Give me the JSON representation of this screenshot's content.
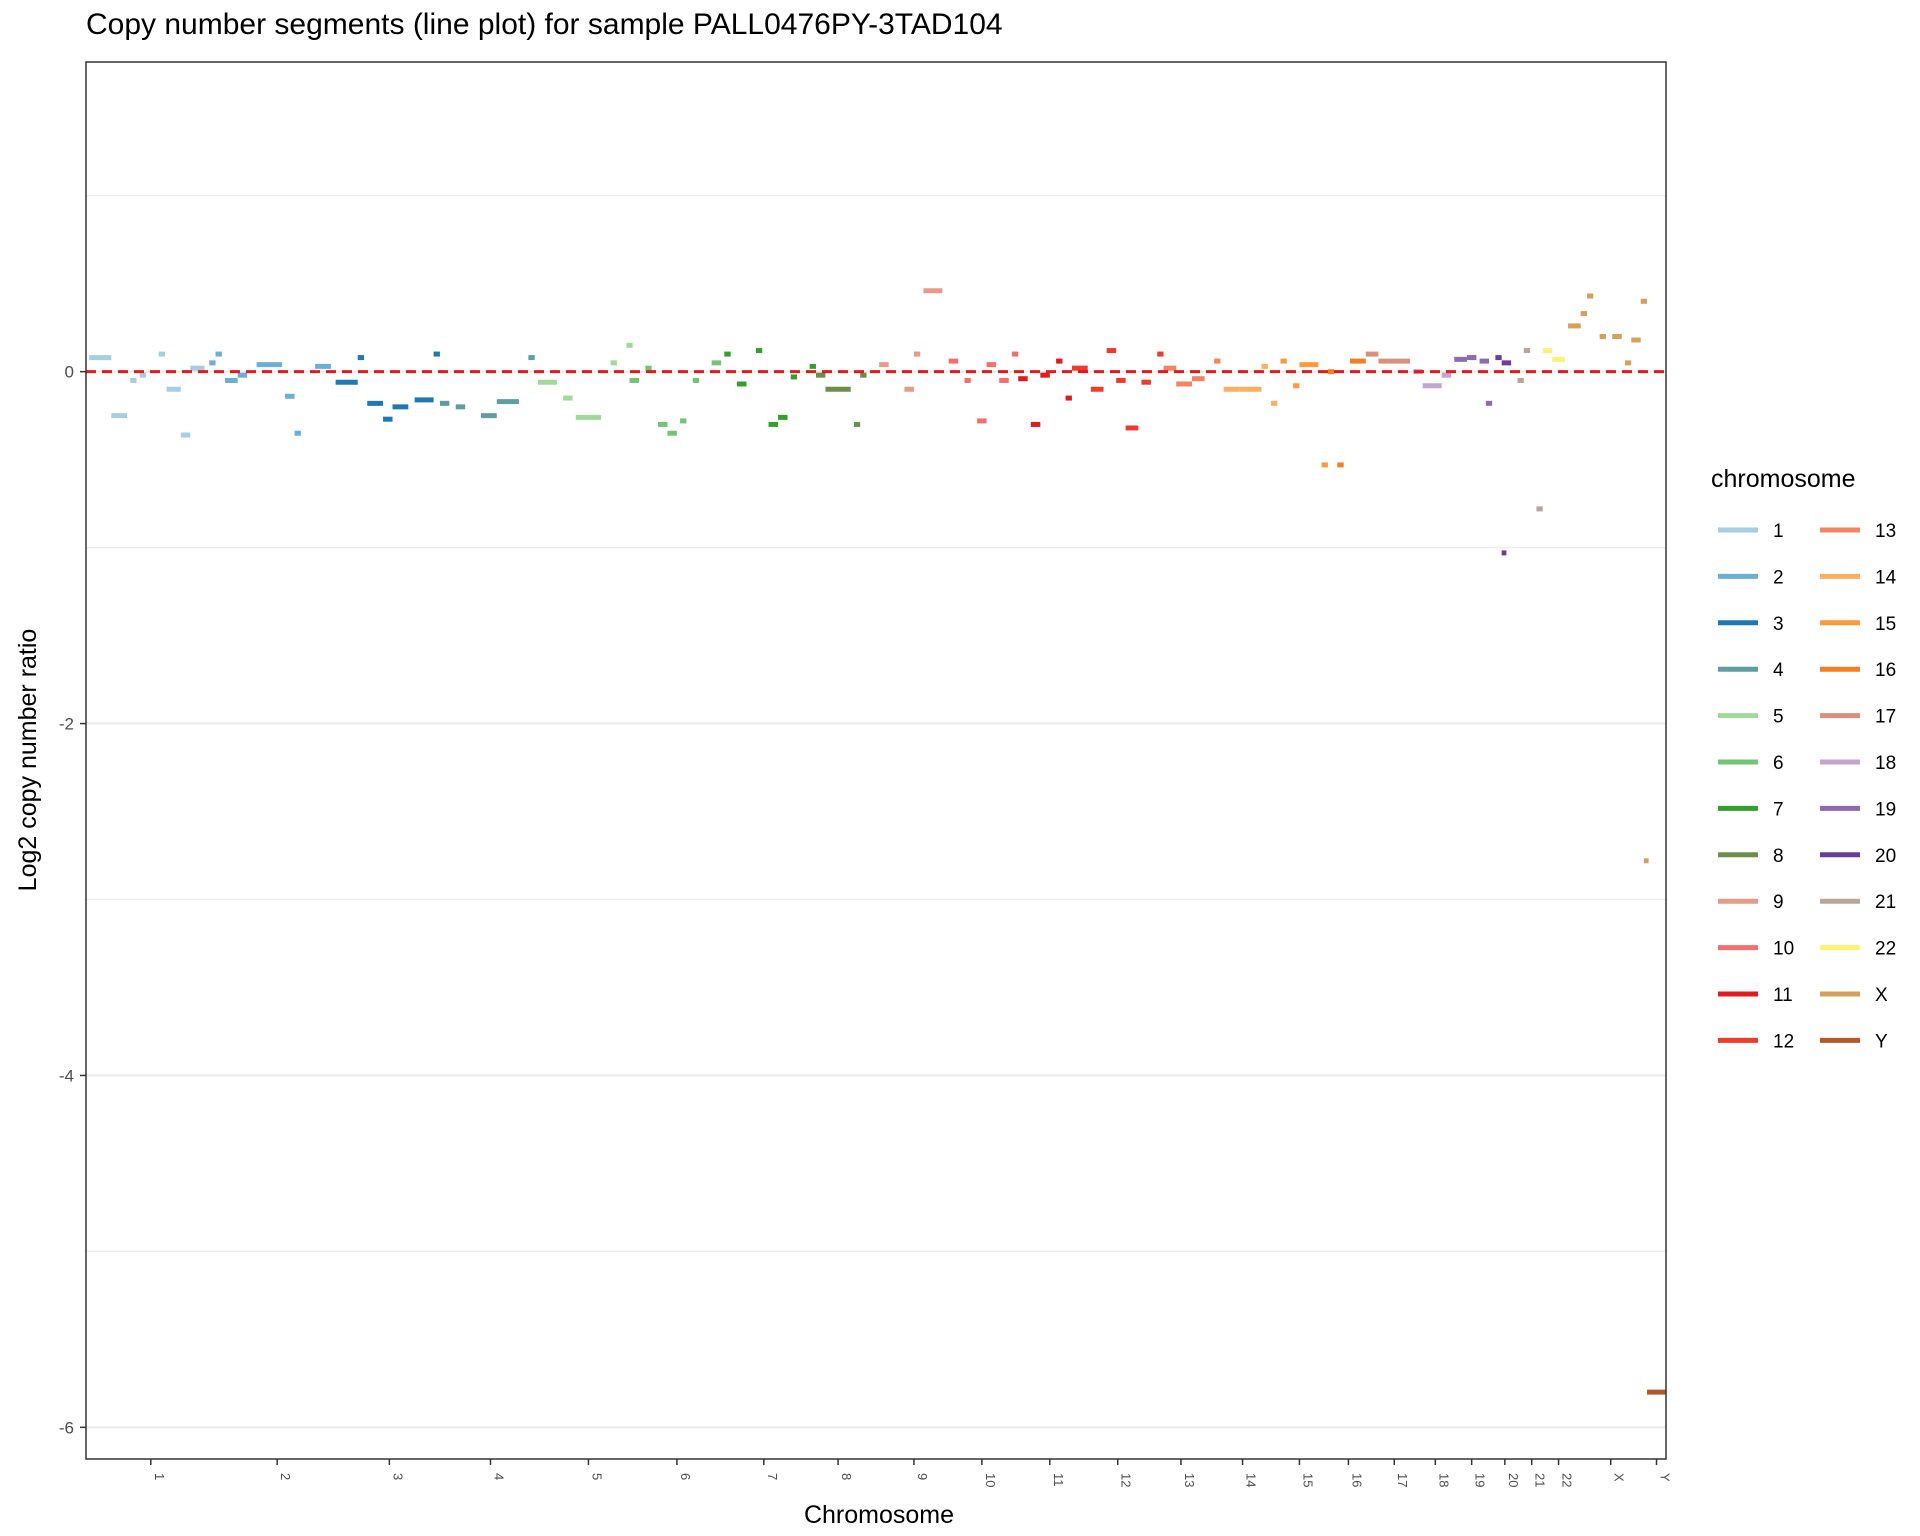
{
  "chart_data": {
    "type": "line",
    "title": "Copy number segments (line plot) for sample PALL0476PY-3TAD104",
    "xlabel": "Chromosome",
    "ylabel": "Log2 copy number ratio",
    "ylim": [
      -6.18,
      1.76
    ],
    "yticks": [
      0,
      -2,
      -4,
      -6
    ],
    "xlim": [
      0,
      100
    ],
    "reference_line": 0,
    "grid": "horizontal",
    "legend_title": "chromosome",
    "legend_placement": "right",
    "chromosomes": [
      {
        "name": "1",
        "center": 4.1,
        "color": "#a6cee3"
      },
      {
        "name": "2",
        "center": 12.1,
        "color": "#6baed6"
      },
      {
        "name": "3",
        "center": 19.2,
        "color": "#1f78b4"
      },
      {
        "name": "4",
        "center": 25.6,
        "color": "#5f9ea0"
      },
      {
        "name": "5",
        "center": 31.8,
        "color": "#a1d99b"
      },
      {
        "name": "6",
        "center": 37.4,
        "color": "#74c476"
      },
      {
        "name": "7",
        "center": 42.9,
        "color": "#33a02c"
      },
      {
        "name": "8",
        "center": 47.6,
        "color": "#6b8e4e"
      },
      {
        "name": "9",
        "center": 52.4,
        "color": "#e59a8a"
      },
      {
        "name": "10",
        "center": 56.7,
        "color": "#f46e6e"
      },
      {
        "name": "11",
        "center": 61.0,
        "color": "#e31a1c"
      },
      {
        "name": "12",
        "center": 65.3,
        "color": "#ef3b2c"
      },
      {
        "name": "13",
        "center": 69.3,
        "color": "#f4845f"
      },
      {
        "name": "14",
        "center": 73.2,
        "color": "#fdae61"
      },
      {
        "name": "15",
        "center": 76.8,
        "color": "#fd9b3c"
      },
      {
        "name": "16",
        "center": 79.9,
        "color": "#f57f20"
      },
      {
        "name": "17",
        "center": 82.8,
        "color": "#d8917c"
      },
      {
        "name": "18",
        "center": 85.4,
        "color": "#c2a5cf"
      },
      {
        "name": "19",
        "center": 87.7,
        "color": "#8c6bb1"
      },
      {
        "name": "20",
        "center": 89.8,
        "color": "#6a3d9a"
      },
      {
        "name": "21",
        "center": 91.5,
        "color": "#b8a59a"
      },
      {
        "name": "22",
        "center": 93.2,
        "color": "#fff176"
      },
      {
        "name": "X",
        "center": 96.5,
        "color": "#d4a05a"
      },
      {
        "name": "Y",
        "center": 99.4,
        "color": "#b15928"
      }
    ],
    "segments": [
      {
        "chr": "1",
        "x0": 0.2,
        "x1": 1.6,
        "y": 0.08
      },
      {
        "chr": "1",
        "x0": 1.6,
        "x1": 2.6,
        "y": -0.25
      },
      {
        "chr": "1",
        "x0": 2.8,
        "x1": 3.2,
        "y": -0.05
      },
      {
        "chr": "1",
        "x0": 3.4,
        "x1": 3.8,
        "y": -0.02
      },
      {
        "chr": "1",
        "x0": 4.6,
        "x1": 5.0,
        "y": 0.1
      },
      {
        "chr": "1",
        "x0": 5.1,
        "x1": 6.0,
        "y": -0.1
      },
      {
        "chr": "1",
        "x0": 6.0,
        "x1": 6.6,
        "y": -0.36
      },
      {
        "chr": "1",
        "x0": 6.6,
        "x1": 7.5,
        "y": 0.02
      },
      {
        "chr": "2",
        "x0": 7.8,
        "x1": 8.2,
        "y": 0.05
      },
      {
        "chr": "2",
        "x0": 8.2,
        "x1": 8.6,
        "y": 0.1
      },
      {
        "chr": "2",
        "x0": 8.8,
        "x1": 9.6,
        "y": -0.05
      },
      {
        "chr": "2",
        "x0": 9.6,
        "x1": 10.2,
        "y": -0.02
      },
      {
        "chr": "2",
        "x0": 10.8,
        "x1": 12.4,
        "y": 0.04
      },
      {
        "chr": "2",
        "x0": 12.6,
        "x1": 13.2,
        "y": -0.14
      },
      {
        "chr": "2",
        "x0": 13.2,
        "x1": 13.6,
        "y": -0.35
      },
      {
        "chr": "2",
        "x0": 14.5,
        "x1": 15.5,
        "y": 0.03
      },
      {
        "chr": "3",
        "x0": 15.8,
        "x1": 17.2,
        "y": -0.06
      },
      {
        "chr": "3",
        "x0": 17.2,
        "x1": 17.6,
        "y": 0.08
      },
      {
        "chr": "3",
        "x0": 17.8,
        "x1": 18.8,
        "y": -0.18
      },
      {
        "chr": "3",
        "x0": 18.8,
        "x1": 19.4,
        "y": -0.27
      },
      {
        "chr": "3",
        "x0": 19.4,
        "x1": 20.4,
        "y": -0.2
      },
      {
        "chr": "3",
        "x0": 20.8,
        "x1": 22.0,
        "y": -0.16
      },
      {
        "chr": "3",
        "x0": 22.0,
        "x1": 22.4,
        "y": 0.1
      },
      {
        "chr": "4",
        "x0": 22.4,
        "x1": 23.0,
        "y": -0.18
      },
      {
        "chr": "4",
        "x0": 23.4,
        "x1": 24.0,
        "y": -0.2
      },
      {
        "chr": "4",
        "x0": 25.0,
        "x1": 26.0,
        "y": -0.25
      },
      {
        "chr": "4",
        "x0": 26.0,
        "x1": 27.4,
        "y": -0.17
      },
      {
        "chr": "4",
        "x0": 28.0,
        "x1": 28.4,
        "y": 0.08
      },
      {
        "chr": "5",
        "x0": 28.6,
        "x1": 29.8,
        "y": -0.06
      },
      {
        "chr": "5",
        "x0": 30.2,
        "x1": 30.8,
        "y": -0.15
      },
      {
        "chr": "5",
        "x0": 31.0,
        "x1": 32.6,
        "y": -0.26
      },
      {
        "chr": "5",
        "x0": 33.2,
        "x1": 33.6,
        "y": 0.05
      },
      {
        "chr": "5",
        "x0": 34.2,
        "x1": 34.6,
        "y": 0.15
      },
      {
        "chr": "6",
        "x0": 34.4,
        "x1": 35.0,
        "y": -0.05
      },
      {
        "chr": "6",
        "x0": 35.4,
        "x1": 35.8,
        "y": 0.02
      },
      {
        "chr": "6",
        "x0": 36.2,
        "x1": 36.8,
        "y": -0.3
      },
      {
        "chr": "6",
        "x0": 36.8,
        "x1": 37.4,
        "y": -0.35
      },
      {
        "chr": "6",
        "x0": 37.6,
        "x1": 38.0,
        "y": -0.28
      },
      {
        "chr": "6",
        "x0": 38.4,
        "x1": 38.8,
        "y": -0.05
      },
      {
        "chr": "6",
        "x0": 39.6,
        "x1": 40.2,
        "y": 0.05
      },
      {
        "chr": "7",
        "x0": 40.4,
        "x1": 40.8,
        "y": 0.1
      },
      {
        "chr": "7",
        "x0": 41.2,
        "x1": 41.8,
        "y": -0.07
      },
      {
        "chr": "7",
        "x0": 42.4,
        "x1": 42.8,
        "y": 0.12
      },
      {
        "chr": "7",
        "x0": 43.2,
        "x1": 43.8,
        "y": -0.3
      },
      {
        "chr": "7",
        "x0": 43.8,
        "x1": 44.4,
        "y": -0.26
      },
      {
        "chr": "7",
        "x0": 44.6,
        "x1": 45.0,
        "y": -0.03
      },
      {
        "chr": "7",
        "x0": 45.8,
        "x1": 46.2,
        "y": 0.03
      },
      {
        "chr": "8",
        "x0": 46.2,
        "x1": 46.8,
        "y": -0.02
      },
      {
        "chr": "8",
        "x0": 46.8,
        "x1": 48.4,
        "y": -0.1
      },
      {
        "chr": "8",
        "x0": 48.6,
        "x1": 49.0,
        "y": -0.3
      },
      {
        "chr": "8",
        "x0": 49.0,
        "x1": 49.4,
        "y": -0.02
      },
      {
        "chr": "9",
        "x0": 50.2,
        "x1": 50.8,
        "y": 0.04
      },
      {
        "chr": "9",
        "x0": 51.8,
        "x1": 52.4,
        "y": -0.1
      },
      {
        "chr": "9",
        "x0": 52.4,
        "x1": 52.8,
        "y": 0.1
      },
      {
        "chr": "9",
        "x0": 53.0,
        "x1": 54.2,
        "y": 0.46
      },
      {
        "chr": "10",
        "x0": 54.6,
        "x1": 55.2,
        "y": 0.06
      },
      {
        "chr": "10",
        "x0": 55.6,
        "x1": 56.0,
        "y": -0.05
      },
      {
        "chr": "10",
        "x0": 56.4,
        "x1": 57.0,
        "y": -0.28
      },
      {
        "chr": "10",
        "x0": 57.0,
        "x1": 57.6,
        "y": 0.04
      },
      {
        "chr": "10",
        "x0": 57.8,
        "x1": 58.4,
        "y": -0.05
      },
      {
        "chr": "10",
        "x0": 58.6,
        "x1": 59.0,
        "y": 0.1
      },
      {
        "chr": "11",
        "x0": 59.0,
        "x1": 59.6,
        "y": -0.04
      },
      {
        "chr": "11",
        "x0": 59.8,
        "x1": 60.4,
        "y": -0.3
      },
      {
        "chr": "11",
        "x0": 60.4,
        "x1": 61.0,
        "y": -0.02
      },
      {
        "chr": "11",
        "x0": 61.4,
        "x1": 61.8,
        "y": 0.06
      },
      {
        "chr": "11",
        "x0": 62.0,
        "x1": 62.4,
        "y": -0.15
      },
      {
        "chr": "12",
        "x0": 62.4,
        "x1": 63.4,
        "y": 0.02
      },
      {
        "chr": "12",
        "x0": 63.6,
        "x1": 64.4,
        "y": -0.1
      },
      {
        "chr": "12",
        "x0": 64.6,
        "x1": 65.2,
        "y": 0.12
      },
      {
        "chr": "12",
        "x0": 65.2,
        "x1": 65.8,
        "y": -0.05
      },
      {
        "chr": "12",
        "x0": 65.8,
        "x1": 66.6,
        "y": -0.32
      },
      {
        "chr": "12",
        "x0": 66.8,
        "x1": 67.4,
        "y": -0.06
      },
      {
        "chr": "12",
        "x0": 67.8,
        "x1": 68.2,
        "y": 0.1
      },
      {
        "chr": "13",
        "x0": 68.2,
        "x1": 69.0,
        "y": 0.02
      },
      {
        "chr": "13",
        "x0": 69.0,
        "x1": 70.0,
        "y": -0.07
      },
      {
        "chr": "13",
        "x0": 70.0,
        "x1": 70.8,
        "y": -0.04
      },
      {
        "chr": "13",
        "x0": 71.4,
        "x1": 71.8,
        "y": 0.06
      },
      {
        "chr": "14",
        "x0": 72.0,
        "x1": 73.0,
        "y": -0.1
      },
      {
        "chr": "14",
        "x0": 73.0,
        "x1": 74.4,
        "y": -0.1
      },
      {
        "chr": "14",
        "x0": 74.4,
        "x1": 74.8,
        "y": 0.03
      },
      {
        "chr": "14",
        "x0": 75.0,
        "x1": 75.4,
        "y": -0.18
      },
      {
        "chr": "15",
        "x0": 75.6,
        "x1": 76.0,
        "y": 0.06
      },
      {
        "chr": "15",
        "x0": 76.4,
        "x1": 76.8,
        "y": -0.08
      },
      {
        "chr": "15",
        "x0": 76.8,
        "x1": 78.0,
        "y": 0.04
      },
      {
        "chr": "15",
        "x0": 78.2,
        "x1": 78.6,
        "y": -0.53
      },
      {
        "chr": "16",
        "x0": 78.6,
        "x1": 79.0,
        "y": 0.0
      },
      {
        "chr": "16",
        "x0": 79.2,
        "x1": 79.6,
        "y": -0.53
      },
      {
        "chr": "16",
        "x0": 80.0,
        "x1": 81.0,
        "y": 0.06
      },
      {
        "chr": "17",
        "x0": 81.0,
        "x1": 81.8,
        "y": 0.1
      },
      {
        "chr": "17",
        "x0": 81.8,
        "x1": 82.4,
        "y": 0.06
      },
      {
        "chr": "17",
        "x0": 82.4,
        "x1": 83.8,
        "y": 0.06
      },
      {
        "chr": "18",
        "x0": 84.0,
        "x1": 84.6,
        "y": 0.0
      },
      {
        "chr": "18",
        "x0": 84.6,
        "x1": 85.8,
        "y": -0.08
      },
      {
        "chr": "18",
        "x0": 85.8,
        "x1": 86.4,
        "y": -0.02
      },
      {
        "chr": "19",
        "x0": 86.6,
        "x1": 87.4,
        "y": 0.07
      },
      {
        "chr": "19",
        "x0": 87.4,
        "x1": 88.0,
        "y": 0.08
      },
      {
        "chr": "19",
        "x0": 88.2,
        "x1": 88.8,
        "y": 0.06
      },
      {
        "chr": "19",
        "x0": 88.6,
        "x1": 89.0,
        "y": -0.18
      },
      {
        "chr": "20",
        "x0": 89.2,
        "x1": 89.6,
        "y": 0.08
      },
      {
        "chr": "20",
        "x0": 89.6,
        "x1": 90.2,
        "y": 0.05
      },
      {
        "chr": "20",
        "x0": 89.6,
        "x1": 89.9,
        "y": -1.03
      },
      {
        "chr": "21",
        "x0": 90.6,
        "x1": 91.0,
        "y": -0.05
      },
      {
        "chr": "21",
        "x0": 91.0,
        "x1": 91.4,
        "y": 0.12
      },
      {
        "chr": "21",
        "x0": 91.8,
        "x1": 92.2,
        "y": -0.78
      },
      {
        "chr": "22",
        "x0": 92.2,
        "x1": 92.8,
        "y": 0.12
      },
      {
        "chr": "22",
        "x0": 92.8,
        "x1": 93.6,
        "y": 0.07
      },
      {
        "chr": "X",
        "x0": 93.8,
        "x1": 94.6,
        "y": 0.26
      },
      {
        "chr": "X",
        "x0": 94.6,
        "x1": 95.0,
        "y": 0.33
      },
      {
        "chr": "X",
        "x0": 95.0,
        "x1": 95.4,
        "y": 0.43
      },
      {
        "chr": "X",
        "x0": 95.8,
        "x1": 96.2,
        "y": 0.2
      },
      {
        "chr": "X",
        "x0": 96.6,
        "x1": 97.2,
        "y": 0.2
      },
      {
        "chr": "X",
        "x0": 97.4,
        "x1": 97.8,
        "y": 0.05
      },
      {
        "chr": "X",
        "x0": 97.8,
        "x1": 98.4,
        "y": 0.18
      },
      {
        "chr": "X",
        "x0": 98.4,
        "x1": 98.8,
        "y": 0.4
      },
      {
        "chr": "X",
        "x0": 98.6,
        "x1": 98.9,
        "y": -2.78
      },
      {
        "chr": "Y",
        "x0": 98.8,
        "x1": 100.0,
        "y": -5.8
      }
    ]
  }
}
